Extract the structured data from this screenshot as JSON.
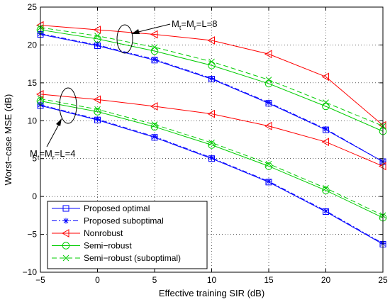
{
  "chart_data": {
    "type": "line",
    "xlabel": "Effective training SIR (dB)",
    "ylabel": "Worst−case MSE (dB)",
    "xlim": [
      -5,
      25
    ],
    "ylim": [
      -10,
      25
    ],
    "xticks": [
      -5,
      0,
      5,
      10,
      15,
      20,
      25
    ],
    "yticks": [
      -10,
      -5,
      0,
      5,
      10,
      15,
      20,
      25
    ],
    "grid": true,
    "legend_position": "bottom-left",
    "x": [
      -5,
      0,
      5,
      10,
      15,
      20,
      25
    ],
    "series": [
      {
        "name": "Proposed optimal",
        "color": "#0000ff",
        "marker": "square",
        "dash": "solid",
        "groups": [
          [
            21.4,
            19.9,
            18.0,
            15.5,
            12.3,
            8.8,
            4.6
          ],
          [
            12.0,
            10.1,
            7.8,
            5.0,
            1.9,
            -2.0,
            -6.3
          ]
        ]
      },
      {
        "name": "Proposed suboptimal",
        "color": "#0000ff",
        "marker": "star",
        "dash": "dashdot",
        "groups": [
          [
            21.5,
            20.0,
            18.1,
            15.6,
            12.4,
            8.9,
            4.6
          ],
          [
            12.1,
            10.2,
            7.9,
            5.1,
            2.0,
            -1.9,
            -6.2
          ]
        ]
      },
      {
        "name": "Nonrobust",
        "color": "#ff0000",
        "marker": "triangle-left",
        "dash": "solid",
        "groups": [
          [
            22.6,
            22.0,
            21.4,
            20.6,
            18.8,
            15.8,
            9.4
          ],
          [
            13.5,
            12.8,
            11.9,
            10.9,
            9.3,
            7.2,
            4.0
          ]
        ]
      },
      {
        "name": "Semi−robust",
        "color": "#00cc00",
        "marker": "circle",
        "dash": "solid",
        "groups": [
          [
            22.0,
            20.8,
            19.2,
            17.3,
            14.9,
            11.9,
            8.6
          ],
          [
            12.6,
            11.2,
            9.2,
            6.8,
            4.0,
            0.8,
            -2.8
          ]
        ]
      },
      {
        "name": "Semi−robust (suboptimal)",
        "color": "#00cc00",
        "marker": "x",
        "dash": "dashdash",
        "groups": [
          [
            22.3,
            21.2,
            19.7,
            17.8,
            15.4,
            12.4,
            9.3
          ],
          [
            12.9,
            11.5,
            9.5,
            7.1,
            4.3,
            1.1,
            -2.5
          ]
        ]
      }
    ],
    "annotations": [
      {
        "text_main": "M",
        "sub1": "t",
        "eq1": "=M",
        "sub2": "r",
        "rest": "=L=8"
      },
      {
        "text_main": "M",
        "sub1": "t",
        "eq1": "=M",
        "sub2": "r",
        "rest": "=L=4"
      }
    ]
  }
}
